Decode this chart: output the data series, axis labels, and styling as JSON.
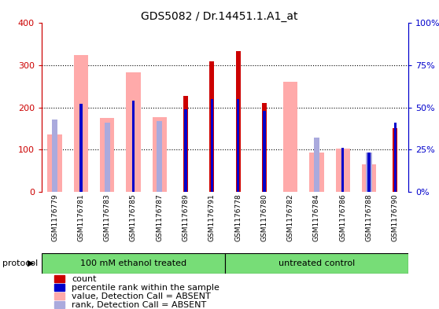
{
  "title": "GDS5082 / Dr.14451.1.A1_at",
  "samples": [
    "GSM1176779",
    "GSM1176781",
    "GSM1176783",
    "GSM1176785",
    "GSM1176787",
    "GSM1176789",
    "GSM1176791",
    "GSM1176778",
    "GSM1176780",
    "GSM1176782",
    "GSM1176784",
    "GSM1176786",
    "GSM1176788",
    "GSM1176790"
  ],
  "count_values": [
    0,
    0,
    0,
    0,
    0,
    228,
    310,
    333,
    210,
    0,
    0,
    0,
    0,
    150
  ],
  "percentile_values": [
    0,
    52,
    0,
    54,
    0,
    49,
    55,
    55,
    48,
    0,
    0,
    26,
    23,
    41
  ],
  "absent_value": [
    135,
    325,
    175,
    284,
    177,
    0,
    0,
    0,
    0,
    260,
    92,
    103,
    65,
    0
  ],
  "absent_rank": [
    43,
    0,
    41,
    0,
    42,
    0,
    0,
    0,
    0,
    0,
    32,
    0,
    23,
    0
  ],
  "group_labels": [
    "100 mM ethanol treated",
    "untreated control"
  ],
  "protocol_label": "protocol",
  "ylim_left": [
    0,
    400
  ],
  "ylim_right": [
    0,
    100
  ],
  "yticks_left": [
    0,
    100,
    200,
    300,
    400
  ],
  "ytick_labels_left": [
    "0",
    "100",
    "200",
    "300",
    "400"
  ],
  "yticks_right": [
    0,
    25,
    50,
    75,
    100
  ],
  "ytick_labels_right": [
    "0%",
    "25%",
    "50%",
    "75%",
    "100%"
  ],
  "left_axis_color": "#cc0000",
  "right_axis_color": "#0000cc",
  "count_color": "#cc0000",
  "percentile_color": "#0000cc",
  "absent_value_color": "#ffaaaa",
  "absent_rank_color": "#aaaadd",
  "group_color": "#77dd77",
  "background_color": "#ffffff"
}
